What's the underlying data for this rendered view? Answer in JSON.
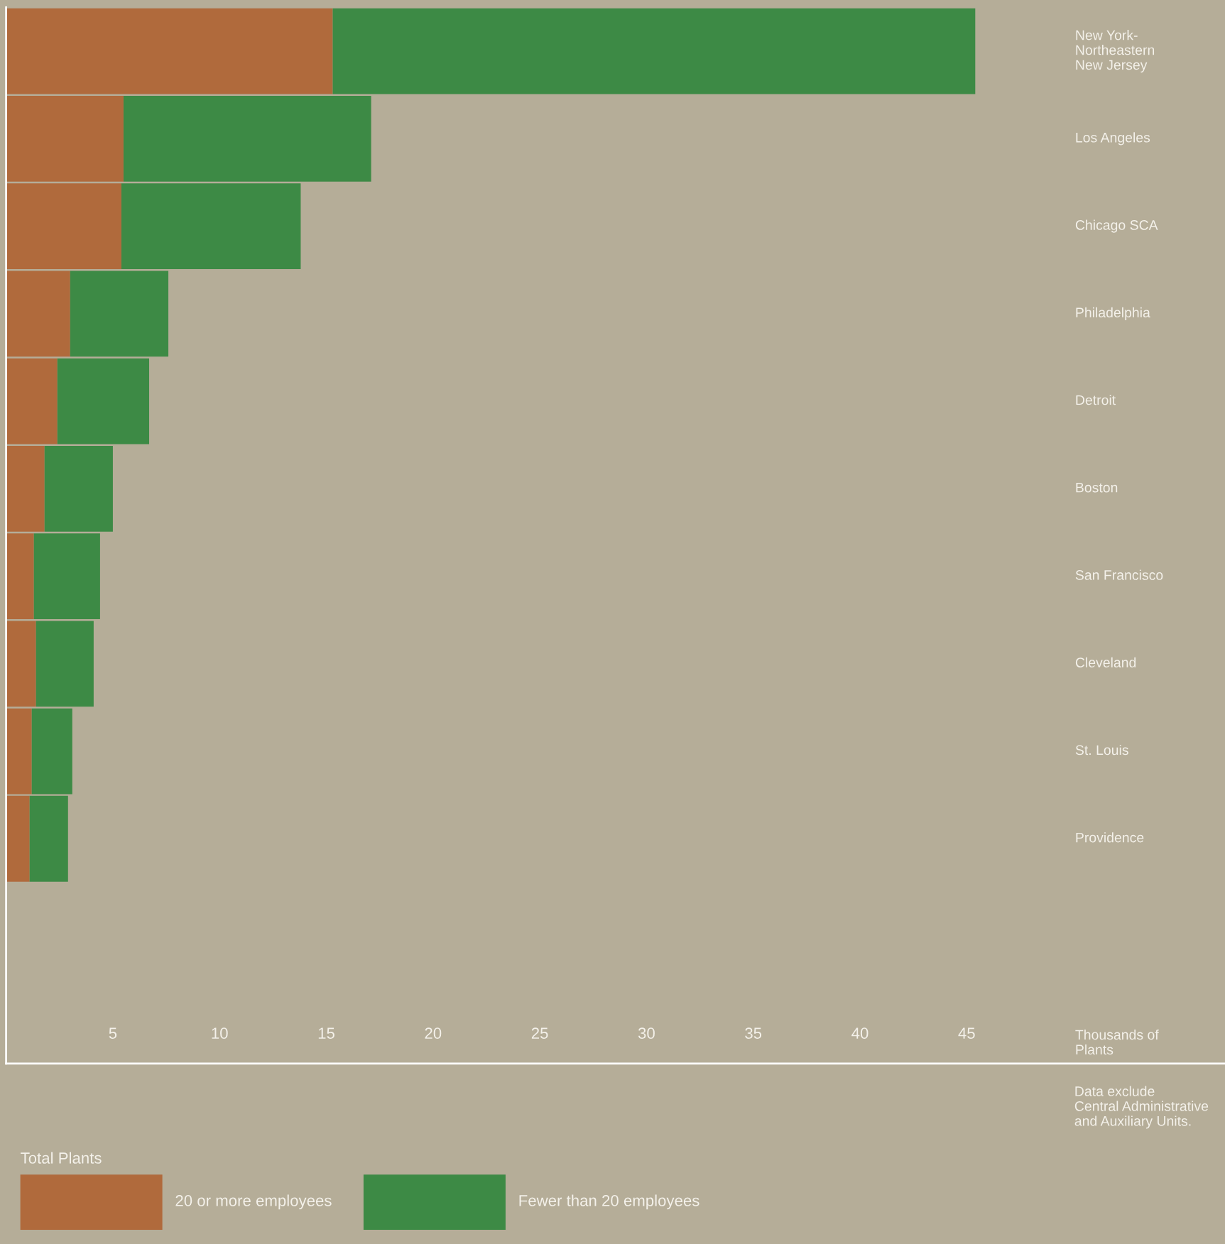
{
  "chart_data": {
    "type": "bar",
    "orientation": "horizontal",
    "stacked": true,
    "categories": [
      "New York-\nNortheastern\nNew Jersey",
      "Los Angeles",
      "Chicago SCA",
      "Philadelphia",
      "Detroit",
      "Boston",
      "San Francisco",
      "Cleveland",
      "St. Louis",
      "Providence"
    ],
    "series": [
      {
        "name": "20 or more employees",
        "color": "#b06a3c",
        "values": [
          15.3,
          5.5,
          5.4,
          3.0,
          2.4,
          1.8,
          1.3,
          1.4,
          1.2,
          1.1
        ]
      },
      {
        "name": "Fewer than 20 employees",
        "color": "#3d8a45",
        "values": [
          30.1,
          11.6,
          8.4,
          4.6,
          4.3,
          3.2,
          3.1,
          2.7,
          1.9,
          1.8
        ]
      }
    ],
    "xlim": [
      0,
      57.1
    ],
    "xticks": [
      5,
      10,
      15,
      20,
      25,
      30,
      35,
      40,
      45
    ],
    "xlabel": "Thousands of\nPlants",
    "legend_title": "Total Plants",
    "legend": "bottom left",
    "annotations": [
      "Data exclude\nCentral Administrative\nand Auxiliary Units."
    ]
  }
}
